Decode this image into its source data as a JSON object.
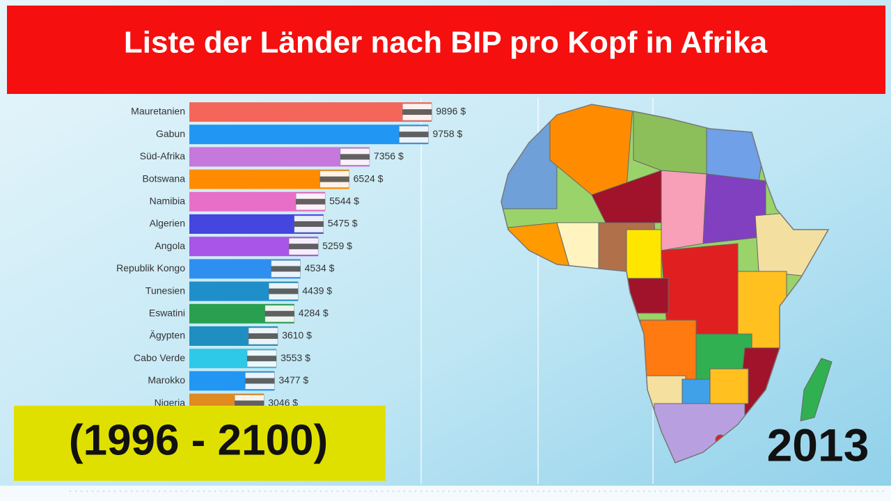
{
  "chart_data": {
    "type": "bar",
    "title": "Liste der Länder nach BIP pro Kopf in Afrika",
    "subtitle": "(1996 - 2100)",
    "year": "2013",
    "categories": [
      "Mauretanien",
      "Gabun",
      "Süd-Afrika",
      "Botswana",
      "Namibia",
      "Algerien",
      "Angola",
      "Republik Kongo",
      "Tunesien",
      "Eswatini",
      "Ägypten",
      "Cabo Verde",
      "Marokko",
      "Nigeria"
    ],
    "values": [
      9896,
      9758,
      7356,
      6524,
      5544,
      5475,
      5259,
      4534,
      4439,
      4284,
      3610,
      3553,
      3477,
      3046
    ],
    "value_labels": [
      "9896 $",
      "9758 $",
      "7356 $",
      "6524 $",
      "5544 $",
      "5475 $",
      "5259 $",
      "4534 $",
      "4439 $",
      "4284 $",
      "3610 $",
      "3553 $",
      "3477 $",
      "3046 $"
    ],
    "colors": [
      "#f4665a",
      "#2196f3",
      "#c678dd",
      "#ff8c00",
      "#e86fc8",
      "#4545e0",
      "#a855e8",
      "#2e8ff0",
      "#1e8fc8",
      "#28a050",
      "#1e8fc0",
      "#2ec8e8",
      "#2196f3",
      "#e08a20"
    ],
    "xlim": [
      0,
      10000
    ]
  }
}
